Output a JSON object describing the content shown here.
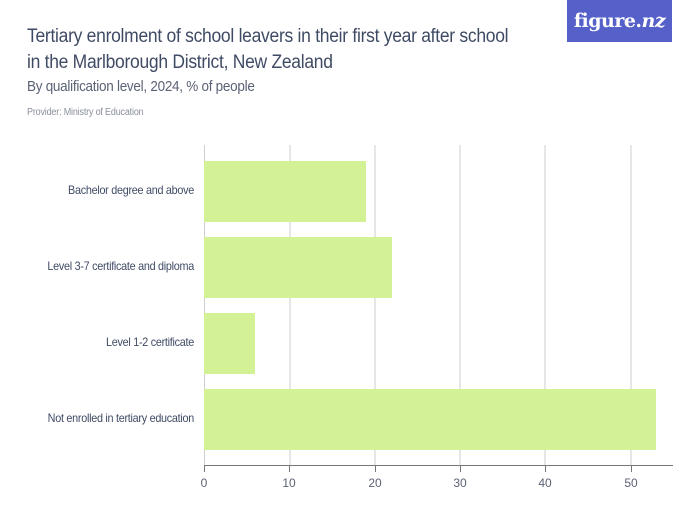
{
  "header": {
    "title": "Tertiary enrolment of school leavers in their first year after school in the Marlborough District, New Zealand",
    "subtitle": "By qualification level, 2024, % of people",
    "provider": "Provider: Ministry of Education"
  },
  "logo": {
    "main": "figure.",
    "accent": "nz",
    "bg_color": "#5560c8"
  },
  "chart_data": {
    "type": "bar",
    "orientation": "horizontal",
    "title": "Tertiary enrolment of school leavers in their first year after school in the Marlborough District, New Zealand",
    "subtitle": "By qualification level, 2024, % of people",
    "categories": [
      "Bachelor degree and above",
      "Level 3-7 certificate and diploma",
      "Level 1-2 certificate",
      "Not enrolled in tertiary education"
    ],
    "values": [
      19,
      22,
      6,
      53
    ],
    "xlabel": "",
    "ylabel": "",
    "xlim": [
      0,
      55
    ],
    "xticks": [
      "0",
      "10",
      "20",
      "30",
      "40",
      "50"
    ],
    "grid": true,
    "legend": null,
    "bar_color": "#d3f295"
  }
}
